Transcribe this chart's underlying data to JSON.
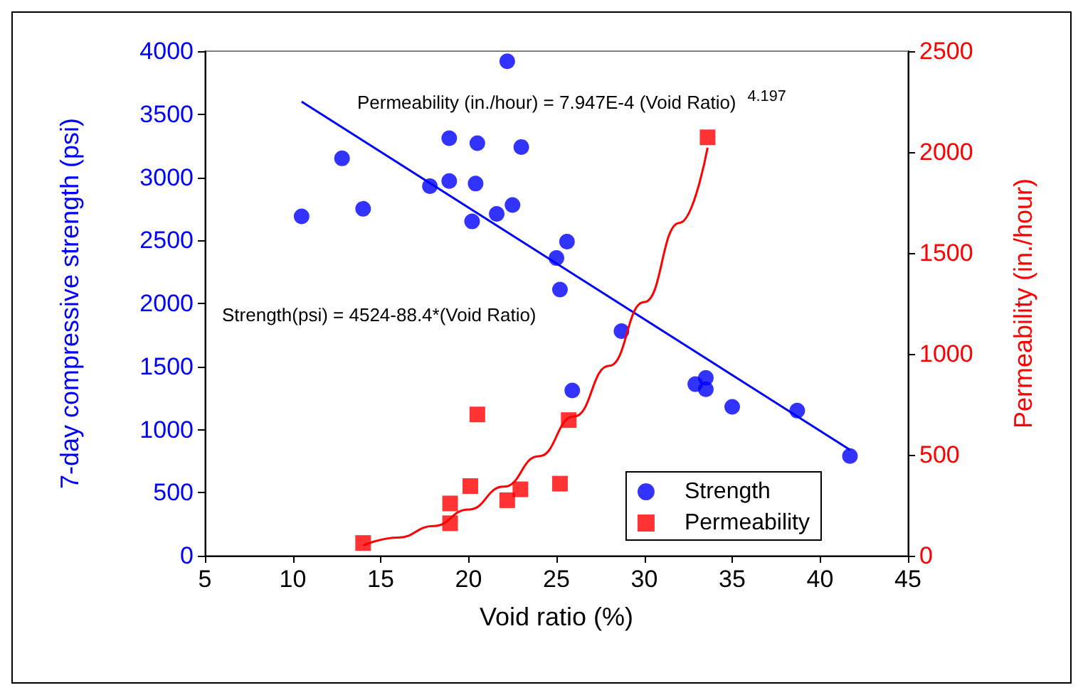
{
  "chart_data": {
    "type": "scatter",
    "xlabel": "Void ratio (%)",
    "ylabel": "7-day compressive strength (psi)",
    "y2label": "Permeability (in./hour)",
    "xlim": [
      5,
      45
    ],
    "xticks": [
      5,
      10,
      15,
      20,
      25,
      30,
      35,
      40,
      45
    ],
    "ylim": [
      0,
      4000
    ],
    "yticks": [
      0,
      500,
      1000,
      1500,
      2000,
      2500,
      3000,
      3500,
      4000
    ],
    "y2lim": [
      0,
      2500
    ],
    "y2ticks": [
      0,
      500,
      1000,
      1500,
      2000,
      2500
    ],
    "grid": false,
    "legend": "bottom right",
    "series": [
      {
        "name": "Strength",
        "marker": "circle",
        "color": "#0000ff",
        "x": [
          10.5,
          12.8,
          14.0,
          17.8,
          18.9,
          18.9,
          20.4,
          20.2,
          20.5,
          21.6,
          22.5,
          23.0,
          22.2,
          25.0,
          25.6,
          25.2,
          25.9,
          28.7,
          32.9,
          33.5,
          33.5,
          35.0,
          38.7,
          41.7
        ],
        "values": [
          2690,
          3150,
          2750,
          2930,
          3310,
          2970,
          2950,
          2650,
          3270,
          2710,
          2780,
          3240,
          3920,
          2360,
          2490,
          2110,
          1310,
          1780,
          1360,
          1410,
          1320,
          1180,
          1150,
          790
        ]
      },
      {
        "name": "Permeability",
        "marker": "square",
        "color": "#ff0000",
        "axis": "y2",
        "x": [
          14.0,
          18.95,
          18.95,
          20.1,
          20.5,
          22.2,
          22.95,
          25.2,
          25.7,
          33.6
        ],
        "values": [
          63,
          161,
          259,
          345,
          700,
          275,
          329,
          357,
          672,
          2073
        ]
      },
      {
        "type": "line",
        "marker": "none",
        "color": "#0000ff",
        "x": [
          10.5,
          41.7
        ],
        "values": [
          3600,
          840
        ]
      },
      {
        "type": "line",
        "marker": "none",
        "color": "#ff0000",
        "axis": "y2",
        "x": [
          14,
          16,
          18,
          20,
          22,
          24,
          26,
          28,
          30,
          32,
          33.6
        ],
        "values": [
          51,
          90,
          147,
          229,
          342,
          493,
          690,
          941,
          1257,
          1649,
          2022
        ]
      }
    ],
    "annotations": [
      "Permeability (in./hour) = 7.947E-4 (Void Ratio)$^{4.197}$",
      "Strength(psi) = 4524-88.4*(Void Ratio)"
    ]
  }
}
